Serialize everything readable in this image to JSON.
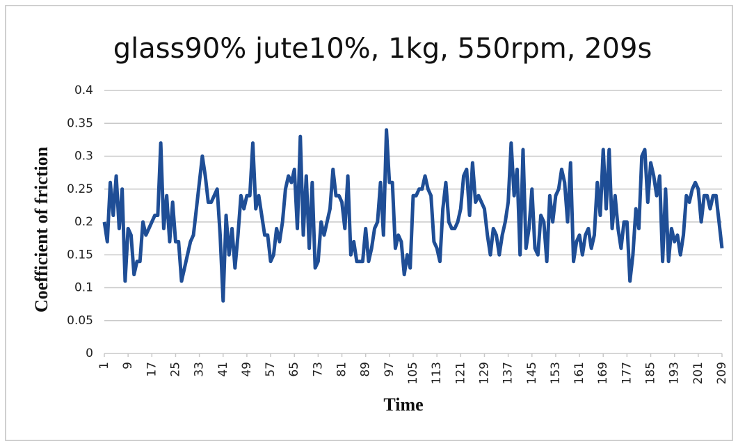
{
  "chart_data": {
    "type": "line",
    "title": "glass90% jute10%, 1kg, 550rpm, 209s",
    "x_label": "Time",
    "y_label": "Coefficient of friction",
    "color": "#1f4e96",
    "grid": true,
    "x": [
      1,
      2,
      3,
      4,
      5,
      6,
      7,
      8,
      9,
      10,
      11,
      12,
      13,
      14,
      15,
      16,
      17,
      18,
      19,
      20,
      21,
      22,
      23,
      24,
      25,
      26,
      27,
      28,
      29,
      30,
      31,
      32,
      33,
      34,
      35,
      36,
      37,
      38,
      39,
      40,
      41,
      42,
      43,
      44,
      45,
      46,
      47,
      48,
      49,
      50,
      51,
      52,
      53,
      54,
      55,
      56,
      57,
      58,
      59,
      60,
      61,
      62,
      63,
      64,
      65,
      66,
      67,
      68,
      69,
      70,
      71,
      72,
      73,
      74,
      75,
      76,
      77,
      78,
      79,
      80,
      81,
      82,
      83,
      84,
      85,
      86,
      87,
      88,
      89,
      90,
      91,
      92,
      93,
      94,
      95,
      96,
      97,
      98,
      99,
      100,
      101,
      102,
      103,
      104,
      105,
      106,
      107,
      108,
      109,
      110,
      111,
      112,
      113,
      114,
      115,
      116,
      117,
      118,
      119,
      120,
      121,
      122,
      123,
      124,
      125,
      126,
      127,
      128,
      129,
      130,
      131,
      132,
      133,
      134,
      135,
      136,
      137,
      138,
      139,
      140,
      141,
      142,
      143,
      144,
      145,
      146,
      147,
      148,
      149,
      150,
      151,
      152,
      153,
      154,
      155,
      156,
      157,
      158,
      159,
      160,
      161,
      162,
      163,
      164,
      165,
      166,
      167,
      168,
      169,
      170,
      171,
      172,
      173,
      174,
      175,
      176,
      177,
      178,
      179,
      180,
      181,
      182,
      183,
      184,
      185,
      186,
      187,
      188,
      189,
      190,
      191,
      192,
      193,
      194,
      195,
      196,
      197,
      198,
      199,
      200,
      201,
      202,
      203,
      204,
      205,
      206,
      207,
      208,
      209
    ],
    "values": [
      0.2,
      0.17,
      0.26,
      0.21,
      0.27,
      0.19,
      0.25,
      0.11,
      0.19,
      0.18,
      0.12,
      0.14,
      0.14,
      0.2,
      0.18,
      0.19,
      0.2,
      0.21,
      0.21,
      0.32,
      0.19,
      0.24,
      0.17,
      0.23,
      0.17,
      0.17,
      0.11,
      0.13,
      0.15,
      0.17,
      0.18,
      0.22,
      0.26,
      0.3,
      0.27,
      0.23,
      0.23,
      0.24,
      0.25,
      0.18,
      0.08,
      0.21,
      0.15,
      0.19,
      0.13,
      0.18,
      0.24,
      0.22,
      0.24,
      0.24,
      0.32,
      0.22,
      0.24,
      0.21,
      0.18,
      0.18,
      0.14,
      0.15,
      0.19,
      0.17,
      0.2,
      0.25,
      0.27,
      0.26,
      0.28,
      0.19,
      0.33,
      0.18,
      0.27,
      0.16,
      0.26,
      0.13,
      0.14,
      0.2,
      0.18,
      0.2,
      0.22,
      0.28,
      0.24,
      0.24,
      0.23,
      0.19,
      0.27,
      0.15,
      0.17,
      0.14,
      0.14,
      0.14,
      0.19,
      0.14,
      0.16,
      0.19,
      0.2,
      0.26,
      0.18,
      0.34,
      0.26,
      0.26,
      0.16,
      0.18,
      0.17,
      0.12,
      0.15,
      0.13,
      0.24,
      0.24,
      0.25,
      0.25,
      0.27,
      0.25,
      0.24,
      0.17,
      0.16,
      0.14,
      0.22,
      0.26,
      0.2,
      0.19,
      0.19,
      0.2,
      0.22,
      0.27,
      0.28,
      0.21,
      0.29,
      0.23,
      0.24,
      0.23,
      0.22,
      0.18,
      0.15,
      0.19,
      0.18,
      0.15,
      0.18,
      0.2,
      0.23,
      0.32,
      0.24,
      0.28,
      0.15,
      0.31,
      0.16,
      0.19,
      0.25,
      0.16,
      0.15,
      0.21,
      0.2,
      0.14,
      0.24,
      0.2,
      0.24,
      0.25,
      0.28,
      0.26,
      0.2,
      0.29,
      0.14,
      0.17,
      0.18,
      0.15,
      0.18,
      0.19,
      0.16,
      0.18,
      0.26,
      0.21,
      0.31,
      0.22,
      0.31,
      0.19,
      0.24,
      0.19,
      0.16,
      0.2,
      0.2,
      0.11,
      0.15,
      0.22,
      0.19,
      0.3,
      0.31,
      0.23,
      0.29,
      0.27,
      0.24,
      0.27,
      0.14,
      0.25,
      0.14,
      0.19,
      0.17,
      0.18,
      0.15,
      0.18,
      0.24,
      0.23,
      0.25,
      0.26,
      0.25,
      0.2,
      0.24,
      0.24,
      0.22,
      0.24,
      0.24,
      0.2,
      0.16
    ],
    "xlim": [
      1,
      209
    ],
    "xticks": [
      1,
      9,
      17,
      25,
      33,
      41,
      49,
      57,
      65,
      73,
      81,
      89,
      97,
      105,
      113,
      121,
      129,
      137,
      145,
      153,
      161,
      169,
      177,
      185,
      193,
      201,
      209
    ],
    "ylim": [
      0,
      0.4
    ],
    "yticks": [
      0,
      0.05,
      0.1,
      0.15,
      0.2,
      0.25,
      0.3,
      0.35,
      0.4
    ]
  }
}
